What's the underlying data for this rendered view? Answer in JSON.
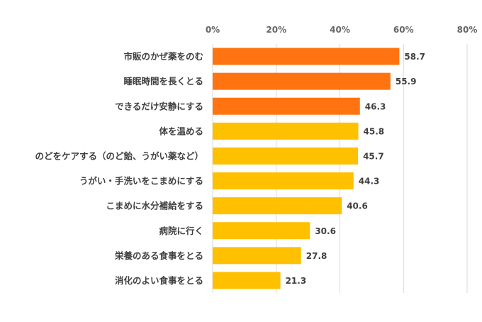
{
  "chart_data": {
    "type": "bar",
    "orientation": "horizontal",
    "categories": [
      "市販のかぜ薬をのむ",
      "睡眠時間を長くとる",
      "できるだけ安静にする",
      "体を温める",
      "のどをケアする（のど飴、うがい薬など）",
      "うがい・手洗いをこまめにする",
      "こまめに水分補給をする",
      "病院に行く",
      "栄養のある食事をとる",
      "消化のよい食事をとる"
    ],
    "values": [
      58.7,
      55.9,
      46.3,
      45.8,
      45.7,
      44.3,
      40.6,
      30.6,
      27.8,
      21.3
    ],
    "value_labels": [
      "58.7",
      "55.9",
      "46.3",
      "45.8",
      "45.7",
      "44.3",
      "40.6",
      "30.6",
      "27.8",
      "21.3"
    ],
    "highlight_count": 3,
    "xlim": [
      0,
      80
    ],
    "x_ticks": [
      "0%",
      "20%",
      "40%",
      "60%",
      "80%"
    ],
    "tick_values": [
      0,
      20,
      40,
      60,
      80
    ],
    "x_axis_position": "top",
    "grid": true,
    "legend": "none",
    "colors": {
      "highlight": "#FF7410",
      "normal": "#FFC000",
      "grid": "#D9D9D9"
    }
  }
}
